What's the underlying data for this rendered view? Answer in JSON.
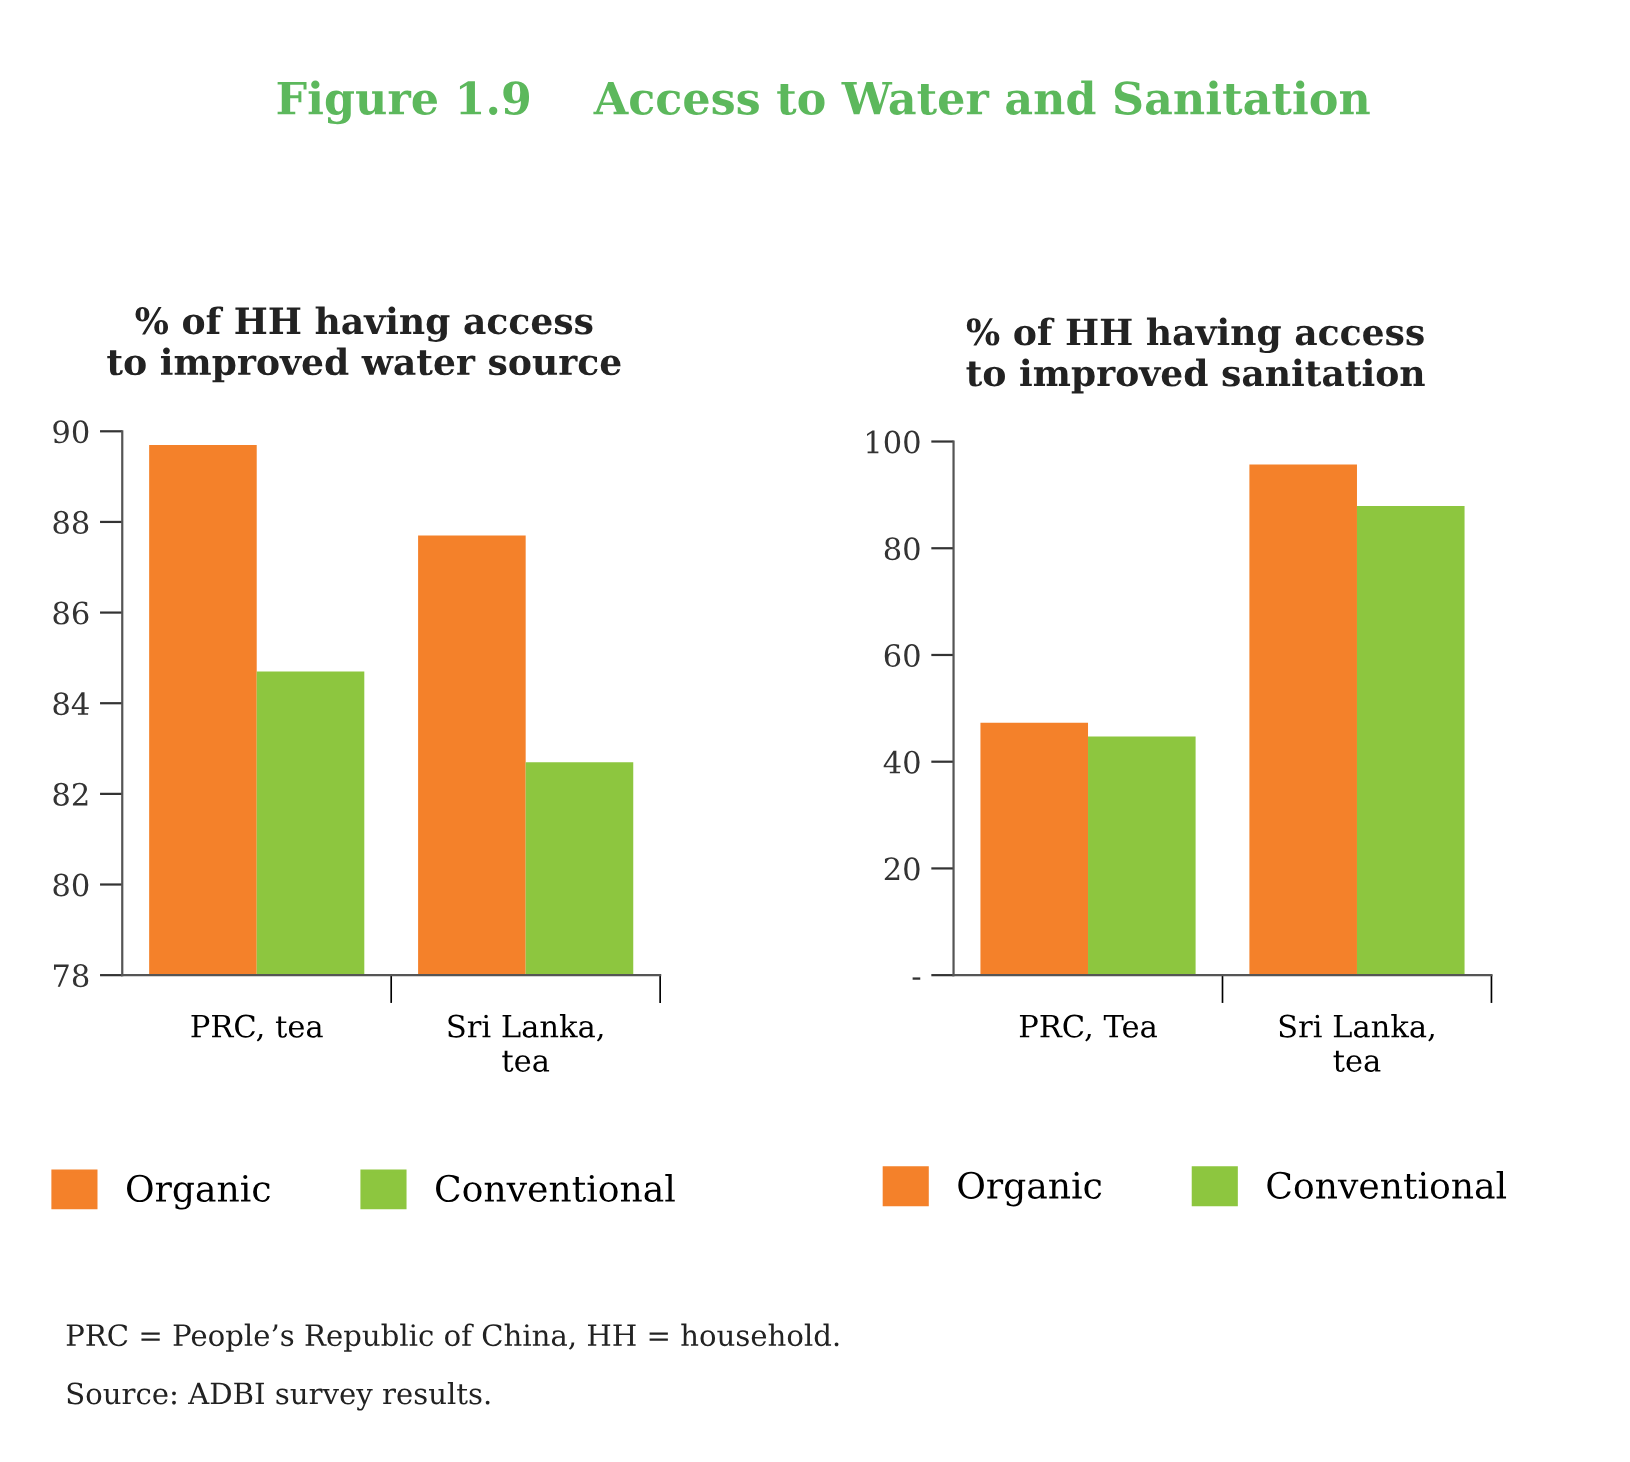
{
  "chart_data": [
    {
      "type": "bar",
      "title": "Figure 1.9    Access to Water and Sanitation",
      "subtitle": "% of HH having access\nto improved water source",
      "categories": [
        "PRC, tea",
        "Sri Lanka,\ntea"
      ],
      "series": [
        {
          "name": "Organic",
          "color": "#f4812a",
          "values": [
            89.7,
            87.7
          ]
        },
        {
          "name": "Conventional",
          "color": "#8dc63f",
          "values": [
            84.7,
            82.7
          ]
        }
      ],
      "ylim": [
        78,
        90
      ],
      "yticks": [
        78,
        80,
        82,
        84,
        86,
        88,
        90
      ],
      "grid": false,
      "legend": "bottom"
    },
    {
      "type": "bar",
      "subtitle": "% of HH having access\nto improved sanitation",
      "categories": [
        "PRC, Tea",
        "Sri Lanka,\ntea"
      ],
      "series": [
        {
          "name": "Organic",
          "color": "#f4812a",
          "values": [
            47.3,
            95.7
          ]
        },
        {
          "name": "Conventional",
          "color": "#8dc63f",
          "values": [
            44.7,
            87.9
          ]
        }
      ],
      "ylim": [
        0,
        100
      ],
      "yticks": [
        {
          "value": 0,
          "label": "-"
        },
        20,
        40,
        60,
        80,
        100
      ],
      "grid": false,
      "legend": "bottom",
      "annotations": [
        "PRC = People’s Republic of China, HH = household.",
        "Source: ADBI survey results."
      ]
    }
  ]
}
